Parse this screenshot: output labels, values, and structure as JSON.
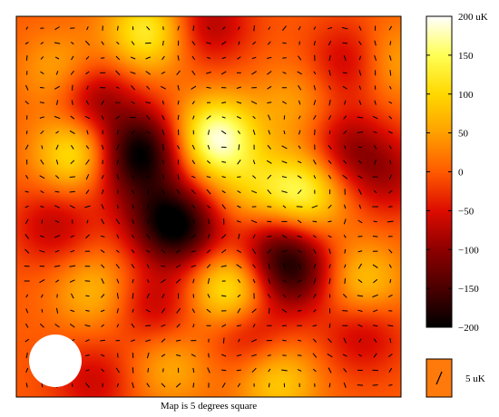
{
  "chart_data": {
    "type": "heatmap",
    "title": "",
    "caption": "Map is 5 degrees square",
    "colorbar": {
      "min": -200,
      "max": 200,
      "ticks": [
        {
          "value": 200,
          "label": "200 uK"
        },
        {
          "value": 150,
          "label": "150"
        },
        {
          "value": 100,
          "label": "100"
        },
        {
          "value": 50,
          "label": "50"
        },
        {
          "value": 0,
          "label": "0"
        },
        {
          "value": -50,
          "label": "−50"
        },
        {
          "value": -100,
          "label": "−100"
        },
        {
          "value": -150,
          "label": "−150"
        },
        {
          "value": -200,
          "label": "−200"
        }
      ],
      "colormap": [
        {
          "value": -200,
          "color": "#000000"
        },
        {
          "value": -150,
          "color": "#4a0000"
        },
        {
          "value": -100,
          "color": "#8e0000"
        },
        {
          "value": -50,
          "color": "#dd0c00"
        },
        {
          "value": 0,
          "color": "#ff5a00"
        },
        {
          "value": 50,
          "color": "#ffa000"
        },
        {
          "value": 100,
          "color": "#ffd800"
        },
        {
          "value": 150,
          "color": "#ffff55"
        },
        {
          "value": 200,
          "color": "#ffffff"
        }
      ]
    },
    "polarization_legend": {
      "label": "5 uK",
      "swatch_color": "#ff7a0a"
    },
    "beam": "white circle in lower-left corner",
    "map_extent_deg": 5,
    "temperature_features_uK": [
      {
        "x": 0.2,
        "y": 0.22,
        "value": -110
      },
      {
        "x": 0.33,
        "y": 0.35,
        "value": -170
      },
      {
        "x": 0.26,
        "y": 0.4,
        "value": -60
      },
      {
        "x": 0.43,
        "y": 0.56,
        "value": -150
      },
      {
        "x": 0.37,
        "y": 0.52,
        "value": -90
      },
      {
        "x": 0.72,
        "y": 0.67,
        "value": -150
      },
      {
        "x": 0.66,
        "y": 0.6,
        "value": -80
      },
      {
        "x": 0.88,
        "y": 0.12,
        "value": -90
      },
      {
        "x": 0.5,
        "y": 0.02,
        "value": -80
      },
      {
        "x": 0.86,
        "y": 0.35,
        "value": -90
      },
      {
        "x": 0.97,
        "y": 0.42,
        "value": -70
      },
      {
        "x": 0.1,
        "y": 0.55,
        "value": -70
      },
      {
        "x": 0.6,
        "y": 0.82,
        "value": -80
      },
      {
        "x": 0.36,
        "y": 0.76,
        "value": -70
      },
      {
        "x": 0.2,
        "y": 0.96,
        "value": -60
      },
      {
        "x": 0.9,
        "y": 0.83,
        "value": -70
      },
      {
        "x": 0.34,
        "y": 0.04,
        "value": 130
      },
      {
        "x": 0.12,
        "y": 0.15,
        "value": 70
      },
      {
        "x": 0.52,
        "y": 0.32,
        "value": 190
      },
      {
        "x": 0.16,
        "y": 0.36,
        "value": 140
      },
      {
        "x": 0.75,
        "y": 0.46,
        "value": 140
      },
      {
        "x": 0.96,
        "y": 0.12,
        "value": 80
      },
      {
        "x": 0.56,
        "y": 0.72,
        "value": 150
      },
      {
        "x": 0.68,
        "y": 0.96,
        "value": 90
      },
      {
        "x": 0.9,
        "y": 0.7,
        "value": 90
      },
      {
        "x": 0.2,
        "y": 0.72,
        "value": 70
      },
      {
        "x": 0.4,
        "y": 0.92,
        "value": 60
      },
      {
        "x": 0.62,
        "y": 0.46,
        "value": 70
      },
      {
        "x": 0.72,
        "y": 0.23,
        "value": 50
      }
    ]
  }
}
